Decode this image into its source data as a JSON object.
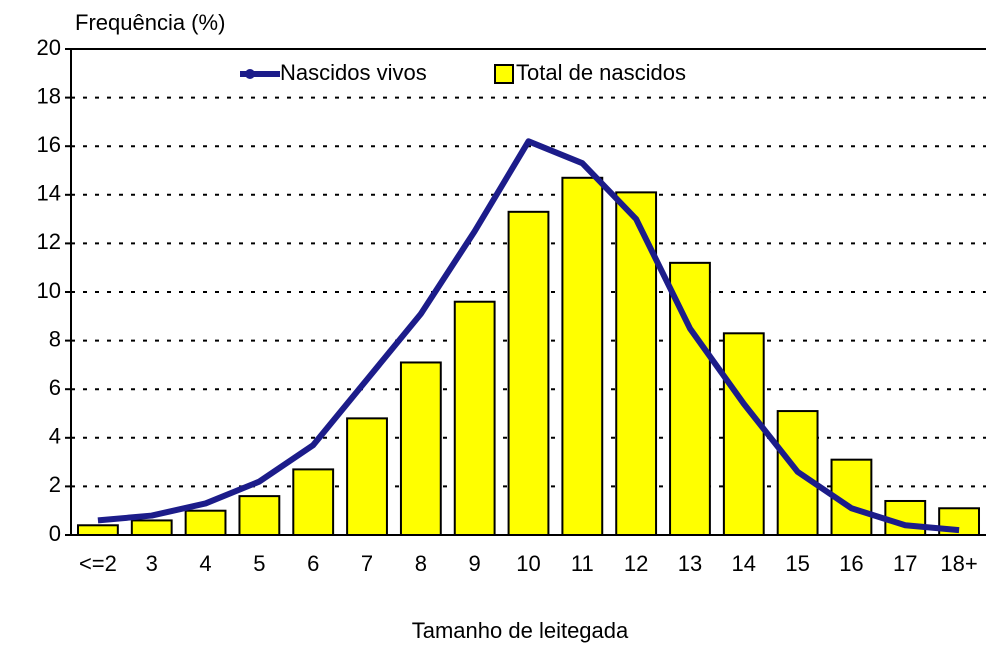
{
  "chart_data": {
    "type": "bar",
    "y_label": "Frequência (%)",
    "x_label": "Tamanho de leitegada",
    "categories": [
      "<=2",
      "3",
      "4",
      "5",
      "6",
      "7",
      "8",
      "9",
      "10",
      "11",
      "12",
      "13",
      "14",
      "15",
      "16",
      "17",
      "18+"
    ],
    "series": [
      {
        "name": "Nascidos vivos",
        "type": "line",
        "color": "#1c1c8a",
        "values": [
          0.6,
          0.8,
          1.3,
          2.2,
          3.7,
          6.4,
          9.1,
          12.5,
          16.2,
          15.3,
          13.0,
          8.5,
          5.4,
          2.6,
          1.1,
          0.4,
          0.2
        ]
      },
      {
        "name": "Total de nascidos",
        "type": "bar",
        "color": "#ffff00",
        "values": [
          0.4,
          0.6,
          1.0,
          1.6,
          2.7,
          4.8,
          7.1,
          9.6,
          13.3,
          14.7,
          14.1,
          11.2,
          8.3,
          5.1,
          3.1,
          1.4,
          1.1
        ]
      }
    ],
    "ylim": [
      0,
      20
    ],
    "yticks": [
      0,
      2,
      4,
      6,
      8,
      10,
      12,
      14,
      16,
      18,
      20
    ],
    "grid": true
  }
}
